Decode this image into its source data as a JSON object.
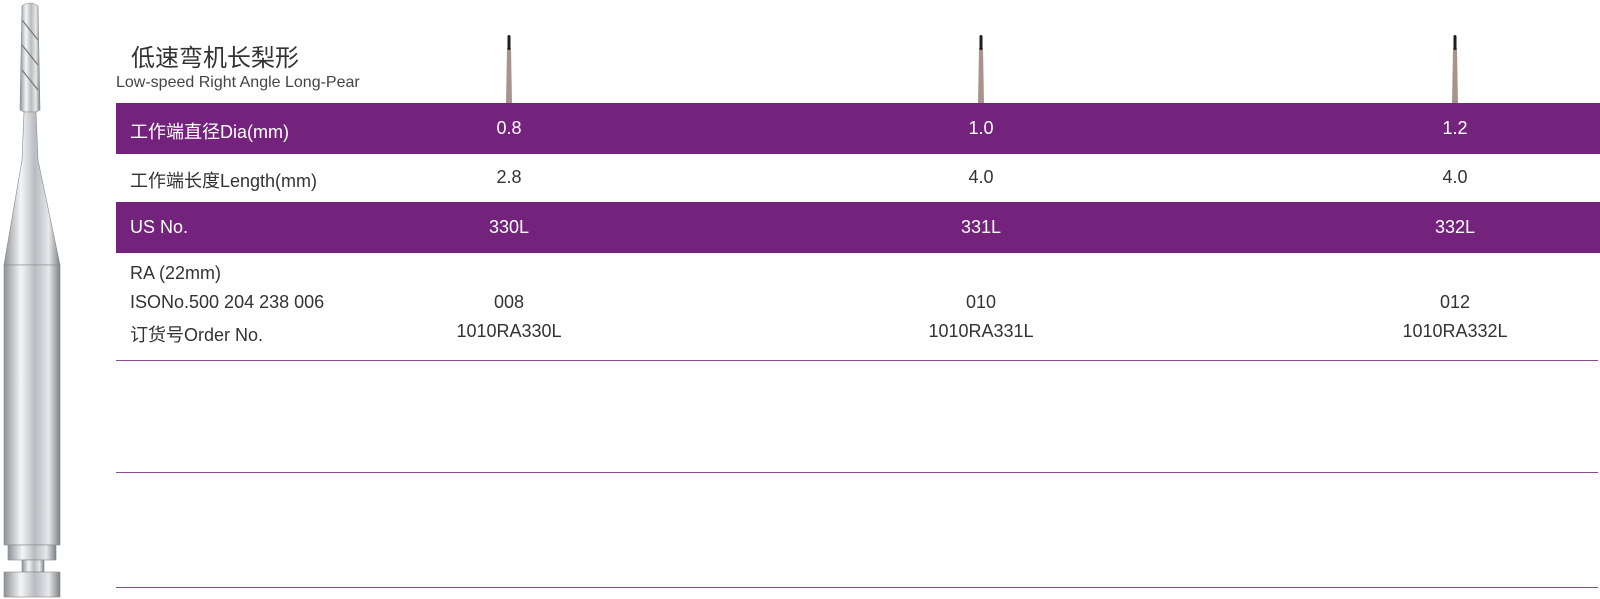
{
  "header": {
    "title": "低速弯机长梨形",
    "subtitle": "Low-speed Right Angle Long-Pear"
  },
  "table": {
    "rows": [
      {
        "label": "工作端直径Dia(mm)",
        "values": [
          "0.8",
          "1.0",
          "1.2"
        ]
      },
      {
        "label": "工作端长度Length(mm)",
        "values": [
          "2.8",
          "4.0",
          "4.0"
        ]
      },
      {
        "label": "US No.",
        "values": [
          "330L",
          "331L",
          "332L"
        ]
      },
      {
        "label": [
          "RA (22mm)",
          "ISONo.500 204 238 006",
          "订货号Order No."
        ],
        "values": [
          [
            "008",
            "1010RA330L"
          ],
          [
            "010",
            "1010RA331L"
          ],
          [
            "012",
            "1010RA332L"
          ]
        ]
      }
    ]
  }
}
